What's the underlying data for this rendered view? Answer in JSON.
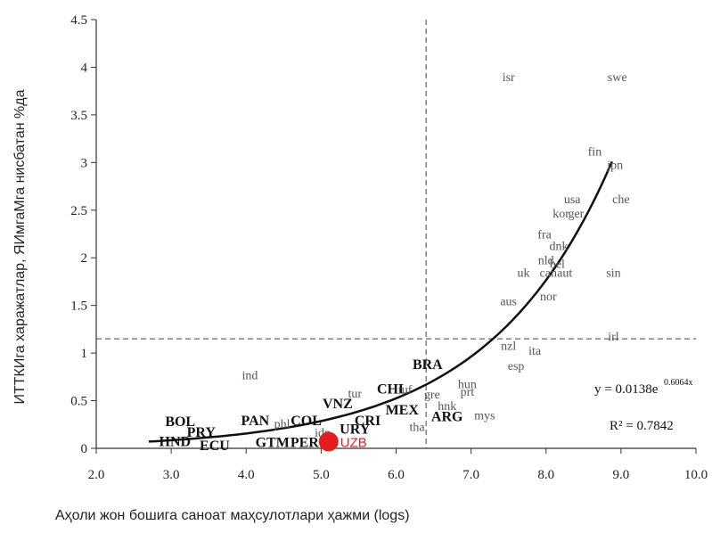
{
  "chart_data": {
    "type": "scatter",
    "title": "",
    "xlabel": "Аҳоли жон бошига саноат маҳсулотлари ҳажми (logs)",
    "ylabel": "ИТТКИга харажатлар, ЯИмгаМга нисбатан %да",
    "xlim": [
      2.0,
      10.0
    ],
    "ylim": [
      0,
      4.5
    ],
    "x_ticks": [
      "2.0",
      "3.0",
      "4.0",
      "5.0",
      "6.0",
      "7.0",
      "8.0",
      "9.0",
      "10.0"
    ],
    "y_ticks": [
      "0",
      "0.5",
      "1",
      "1.5",
      "2",
      "2.5",
      "3",
      "3.5",
      "4",
      "4.5"
    ],
    "grid": false,
    "reference_lines": {
      "vertical_x": 6.4,
      "horizontal_y": 1.15
    },
    "trendline": {
      "equation": "y = 0.0138e",
      "equation_exponent": "0.6064x",
      "r_squared": "R² = 0.7842",
      "a": 0.0138,
      "b": 0.6064,
      "x_range": [
        2.7,
        8.88
      ]
    },
    "highlight": {
      "label": "UZB",
      "x": 5.1,
      "y": 0.07,
      "color": "#e41e1e"
    },
    "points": [
      {
        "label": "isr",
        "x": 7.5,
        "y": 3.9,
        "bold": false
      },
      {
        "label": "swe",
        "x": 8.95,
        "y": 3.9,
        "bold": false
      },
      {
        "label": "fin",
        "x": 8.65,
        "y": 3.12,
        "bold": false
      },
      {
        "label": "jpn",
        "x": 8.92,
        "y": 2.98,
        "bold": false
      },
      {
        "label": "che",
        "x": 9.0,
        "y": 2.62,
        "bold": false
      },
      {
        "label": "usa",
        "x": 8.35,
        "y": 2.62,
        "bold": false
      },
      {
        "label": "kor",
        "x": 8.2,
        "y": 2.47,
        "bold": false
      },
      {
        "label": "ger",
        "x": 8.4,
        "y": 2.47,
        "bold": false
      },
      {
        "label": "fra",
        "x": 7.98,
        "y": 2.25,
        "bold": false
      },
      {
        "label": "dnk",
        "x": 8.17,
        "y": 2.13,
        "bold": false
      },
      {
        "label": "nld",
        "x": 8.0,
        "y": 1.98,
        "bold": false
      },
      {
        "label": "bel",
        "x": 8.15,
        "y": 1.94,
        "bold": false
      },
      {
        "label": "uk",
        "x": 7.7,
        "y": 1.85,
        "bold": false
      },
      {
        "label": "can",
        "x": 8.03,
        "y": 1.85,
        "bold": false
      },
      {
        "label": "aut",
        "x": 8.25,
        "y": 1.85,
        "bold": false
      },
      {
        "label": "sin",
        "x": 8.9,
        "y": 1.85,
        "bold": false
      },
      {
        "label": "aus",
        "x": 7.5,
        "y": 1.55,
        "bold": false
      },
      {
        "label": "nor",
        "x": 8.03,
        "y": 1.6,
        "bold": false
      },
      {
        "label": "irl",
        "x": 8.9,
        "y": 1.18,
        "bold": false
      },
      {
        "label": "nzl",
        "x": 7.5,
        "y": 1.08,
        "bold": false
      },
      {
        "label": "ita",
        "x": 7.85,
        "y": 1.03,
        "bold": false
      },
      {
        "label": "esp",
        "x": 7.6,
        "y": 0.87,
        "bold": false
      },
      {
        "label": "ind",
        "x": 4.05,
        "y": 0.77,
        "bold": false
      },
      {
        "label": "BRA",
        "x": 6.42,
        "y": 0.88,
        "bold": true
      },
      {
        "label": "hun",
        "x": 6.95,
        "y": 0.68,
        "bold": false
      },
      {
        "label": "prt",
        "x": 6.95,
        "y": 0.6,
        "bold": false
      },
      {
        "label": "CHL",
        "x": 5.95,
        "y": 0.62,
        "bold": true
      },
      {
        "label": "tuf",
        "x": 6.12,
        "y": 0.62,
        "bold": false
      },
      {
        "label": "gre",
        "x": 6.48,
        "y": 0.57,
        "bold": false
      },
      {
        "label": "tur",
        "x": 5.45,
        "y": 0.58,
        "bold": false
      },
      {
        "label": "VNZ",
        "x": 5.22,
        "y": 0.47,
        "bold": true
      },
      {
        "label": "hnk",
        "x": 6.68,
        "y": 0.45,
        "bold": false
      },
      {
        "label": "MEX",
        "x": 6.08,
        "y": 0.4,
        "bold": true
      },
      {
        "label": "mys",
        "x": 7.18,
        "y": 0.35,
        "bold": false
      },
      {
        "label": "ARG",
        "x": 6.68,
        "y": 0.33,
        "bold": true
      },
      {
        "label": "CRI",
        "x": 5.62,
        "y": 0.29,
        "bold": true
      },
      {
        "label": "tha",
        "x": 6.28,
        "y": 0.23,
        "bold": false
      },
      {
        "label": "URY",
        "x": 5.45,
        "y": 0.2,
        "bold": true
      },
      {
        "label": "BOL",
        "x": 3.12,
        "y": 0.28,
        "bold": true
      },
      {
        "label": "PAN",
        "x": 4.12,
        "y": 0.29,
        "bold": true
      },
      {
        "label": "phl",
        "x": 4.48,
        "y": 0.26,
        "bold": false
      },
      {
        "label": "COL",
        "x": 4.8,
        "y": 0.29,
        "bold": true
      },
      {
        "label": "idn",
        "x": 5.02,
        "y": 0.17,
        "bold": false
      },
      {
        "label": "PRY",
        "x": 3.4,
        "y": 0.17,
        "bold": true
      },
      {
        "label": "HND",
        "x": 3.05,
        "y": 0.07,
        "bold": true
      },
      {
        "label": "ECU",
        "x": 3.58,
        "y": 0.03,
        "bold": true
      },
      {
        "label": "GTM",
        "x": 4.35,
        "y": 0.06,
        "bold": true
      },
      {
        "label": "PER",
        "x": 4.78,
        "y": 0.06,
        "bold": true
      }
    ]
  }
}
